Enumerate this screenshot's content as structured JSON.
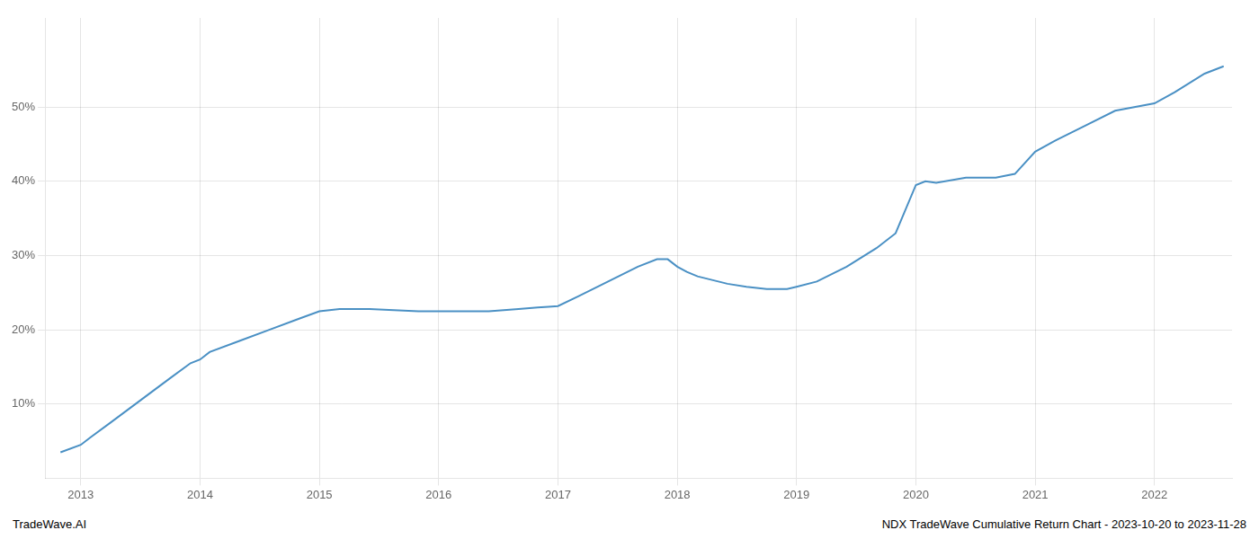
{
  "chart_data": {
    "type": "line",
    "x": [
      2012.83,
      2013.0,
      2013.08,
      2013.25,
      2013.5,
      2013.75,
      2013.92,
      2014.0,
      2014.08,
      2014.33,
      2014.58,
      2014.83,
      2015.0,
      2015.17,
      2015.42,
      2015.83,
      2016.0,
      2016.17,
      2016.42,
      2016.67,
      2016.83,
      2016.92,
      2017.0,
      2017.17,
      2017.42,
      2017.67,
      2017.83,
      2017.92,
      2018.0,
      2018.08,
      2018.17,
      2018.42,
      2018.58,
      2018.75,
      2018.92,
      2019.0,
      2019.17,
      2019.42,
      2019.67,
      2019.83,
      2020.0,
      2020.08,
      2020.17,
      2020.42,
      2020.67,
      2020.83,
      2021.0,
      2021.17,
      2021.42,
      2021.67,
      2021.83,
      2022.0,
      2022.17,
      2022.42,
      2022.58
    ],
    "values": [
      3.5,
      4.5,
      5.5,
      7.5,
      10.5,
      13.5,
      15.5,
      16.0,
      17.0,
      18.5,
      20.0,
      21.5,
      22.5,
      22.8,
      22.8,
      22.5,
      22.5,
      22.5,
      22.5,
      22.8,
      23.0,
      23.1,
      23.2,
      24.5,
      26.5,
      28.5,
      29.5,
      29.5,
      28.5,
      27.8,
      27.2,
      26.2,
      25.8,
      25.5,
      25.5,
      25.8,
      26.5,
      28.5,
      31.0,
      33.0,
      39.5,
      40.0,
      39.8,
      40.5,
      40.5,
      41.0,
      44.0,
      45.5,
      47.5,
      49.5,
      50.0,
      50.5,
      52.0,
      54.5,
      55.5
    ],
    "color": "#4a90c4",
    "xlim": [
      2012.7,
      2022.65
    ],
    "xticks": [
      2013,
      2014,
      2015,
      2016,
      2017,
      2018,
      2019,
      2020,
      2021,
      2022
    ],
    "ylim": [
      0,
      62
    ],
    "yticks": [
      {
        "value": 10,
        "label": "10%"
      },
      {
        "value": 20,
        "label": "20%"
      },
      {
        "value": 30,
        "label": "30%"
      },
      {
        "value": 40,
        "label": "40%"
      },
      {
        "value": 50,
        "label": "50%"
      }
    ],
    "grid": true,
    "annotations": [
      "TradeWave.AI",
      "NDX TradeWave Cumulative Return Chart - 2023-10-20 to 2023-11-28"
    ]
  }
}
